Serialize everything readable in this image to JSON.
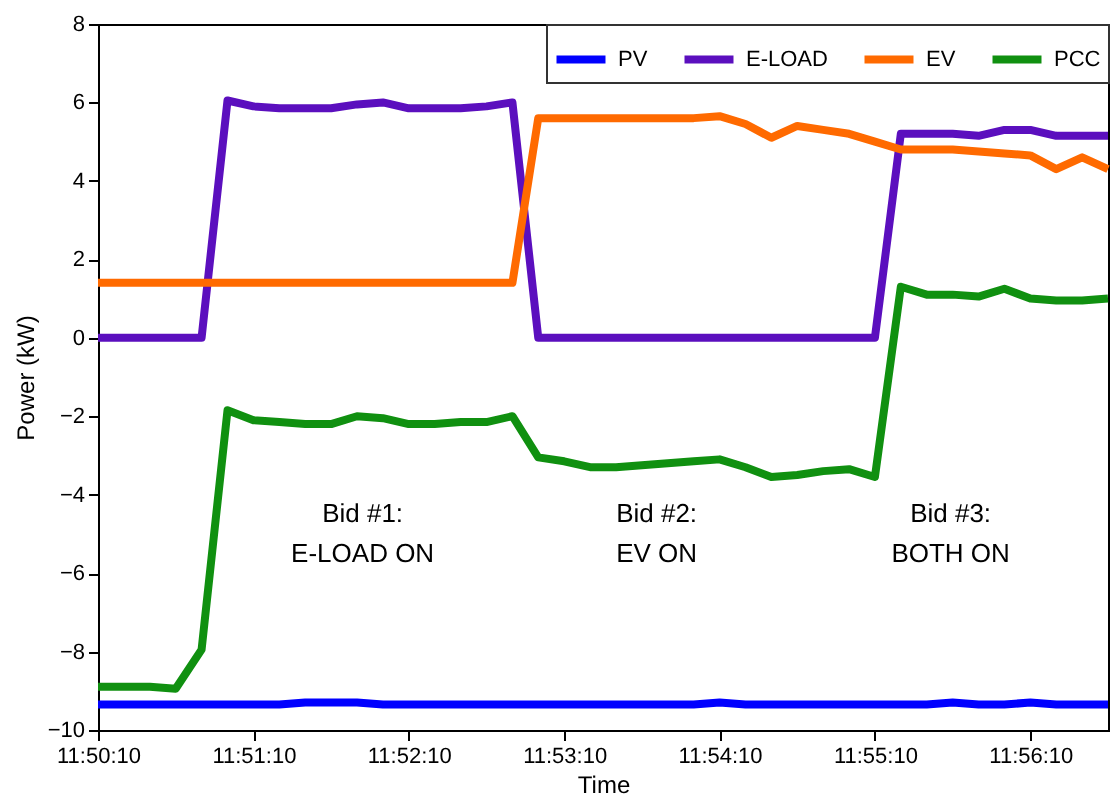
{
  "chart_data": {
    "type": "line",
    "xlabel": "Time",
    "ylabel": "Power (kW)",
    "x": [
      11.83611,
      11.83889,
      11.84167,
      11.84444,
      11.84722,
      11.85,
      11.85278,
      11.85556,
      11.85833,
      11.86111,
      11.86389,
      11.86667,
      11.86944,
      11.87222,
      11.875,
      11.87778,
      11.88056,
      11.88333,
      11.88611,
      11.88889,
      11.89167,
      11.89444,
      11.89722,
      11.9,
      11.90278,
      11.90556,
      11.90833,
      11.91111,
      11.91389,
      11.91667,
      11.91944,
      11.92222,
      11.925,
      11.92778,
      11.93056,
      11.93333,
      11.93611,
      11.93889,
      11.94167,
      11.94444
    ],
    "series": [
      {
        "name": "PV",
        "color": "#0000ff",
        "values": [
          -9.35,
          -9.35,
          -9.35,
          -9.35,
          -9.35,
          -9.35,
          -9.35,
          -9.35,
          -9.3,
          -9.3,
          -9.3,
          -9.35,
          -9.35,
          -9.35,
          -9.35,
          -9.35,
          -9.35,
          -9.35,
          -9.35,
          -9.35,
          -9.35,
          -9.35,
          -9.35,
          -9.35,
          -9.3,
          -9.35,
          -9.35,
          -9.35,
          -9.35,
          -9.35,
          -9.35,
          -9.35,
          -9.35,
          -9.3,
          -9.35,
          -9.35,
          -9.3,
          -9.35,
          -9.35,
          -9.35
        ]
      },
      {
        "name": "E-LOAD",
        "color": "#5b0fbe",
        "values": [
          0,
          0,
          0,
          0,
          0,
          6.05,
          5.9,
          5.85,
          5.85,
          5.85,
          5.95,
          6.0,
          5.85,
          5.85,
          5.85,
          5.9,
          6.0,
          0,
          0,
          0,
          0,
          0,
          0,
          0,
          0,
          0,
          0,
          0,
          0,
          0,
          0,
          5.2,
          5.2,
          5.2,
          5.15,
          5.3,
          5.3,
          5.15,
          5.15,
          5.15
        ]
      },
      {
        "name": "EV",
        "color": "#ff6a00",
        "values": [
          1.4,
          1.4,
          1.4,
          1.4,
          1.4,
          1.4,
          1.4,
          1.4,
          1.4,
          1.4,
          1.4,
          1.4,
          1.4,
          1.4,
          1.4,
          1.4,
          1.4,
          5.6,
          5.6,
          5.6,
          5.6,
          5.6,
          5.6,
          5.6,
          5.65,
          5.45,
          5.1,
          5.4,
          5.3,
          5.2,
          5.0,
          4.8,
          4.8,
          4.8,
          4.75,
          4.7,
          4.65,
          4.3,
          4.6,
          4.3
        ]
      },
      {
        "name": "PCC",
        "color": "#109010",
        "values": [
          -8.9,
          -8.9,
          -8.9,
          -8.95,
          -7.95,
          -1.85,
          -2.1,
          -2.15,
          -2.2,
          -2.2,
          -2.0,
          -2.05,
          -2.2,
          -2.2,
          -2.15,
          -2.15,
          -2.0,
          -3.05,
          -3.15,
          -3.3,
          -3.3,
          -3.25,
          -3.2,
          -3.15,
          -3.1,
          -3.3,
          -3.55,
          -3.5,
          -3.4,
          -3.35,
          -3.55,
          1.3,
          1.1,
          1.1,
          1.05,
          1.25,
          1.0,
          0.95,
          0.95,
          1.0
        ]
      }
    ],
    "xlim": [
      11.83611,
      11.94444
    ],
    "xticks": [
      {
        "value": 11.83611,
        "label": "11:50:10"
      },
      {
        "value": 11.85278,
        "label": "11:51:10"
      },
      {
        "value": 11.86944,
        "label": "11:52:10"
      },
      {
        "value": 11.88611,
        "label": "11:53:10"
      },
      {
        "value": 11.90278,
        "label": "11:54:10"
      },
      {
        "value": 11.91944,
        "label": "11:55:10"
      },
      {
        "value": 11.93611,
        "label": "11:56:10"
      }
    ],
    "ylim": [
      -10,
      8
    ],
    "yticks": [
      -10,
      -8,
      -6,
      -4,
      -2,
      0,
      2,
      4,
      6,
      8
    ],
    "annotations": [
      "Bid #1:\nE-LOAD ON",
      "Bid #2:\nEV ON",
      "Bid #3:\nBOTH ON"
    ],
    "grid": false,
    "legend": "top right"
  }
}
